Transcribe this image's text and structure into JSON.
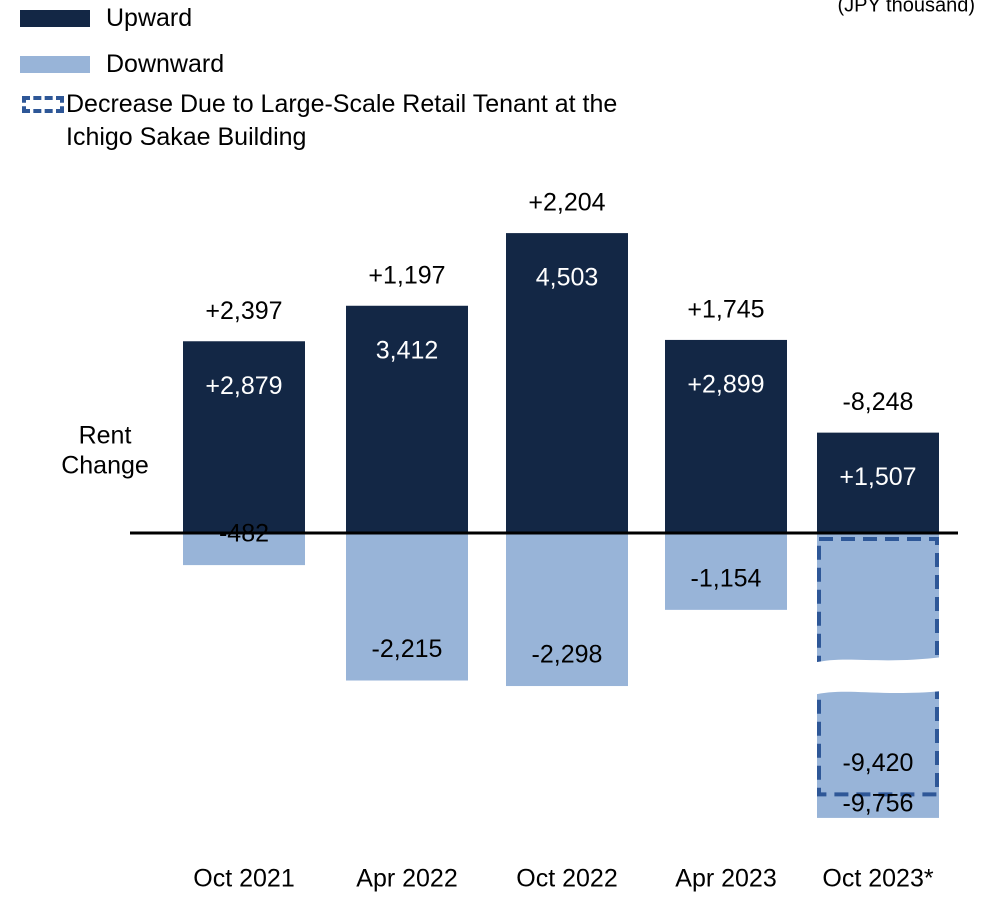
{
  "chart_data": {
    "type": "bar",
    "unit_label": "(JPY thousand)",
    "y_label": "Rent Change",
    "categories": [
      "Oct 2021",
      "Apr 2022",
      "Oct 2022",
      "Apr 2023",
      "Oct 2023*"
    ],
    "series": [
      {
        "name": "Upward",
        "color": "#132745",
        "values": [
          2879,
          3412,
          4503,
          2899,
          1507
        ],
        "value_labels": [
          "+2,879",
          "3,412",
          "4,503",
          "+2,899",
          "+1,507"
        ]
      },
      {
        "name": "Downward",
        "color": "#98b4d8",
        "values": [
          -482,
          -2215,
          -2298,
          -1154,
          -9756
        ],
        "value_labels": [
          "-482",
          "-2,215",
          "-2,298",
          "-1,154",
          "-9,756"
        ]
      },
      {
        "name": "Decrease Due to Large-Scale Retail Tenant at the Ichigo Sakae Building",
        "color": "#2e5797",
        "values": [
          null,
          null,
          null,
          null,
          -9420
        ],
        "value_labels": [
          null,
          null,
          null,
          null,
          "-9,420"
        ]
      }
    ],
    "net_change": {
      "values": [
        2397,
        1197,
        2204,
        1745,
        -8248
      ],
      "value_labels": [
        "+2,397",
        "+1,197",
        "+2,204",
        "+1,745",
        "-8,248"
      ]
    }
  }
}
